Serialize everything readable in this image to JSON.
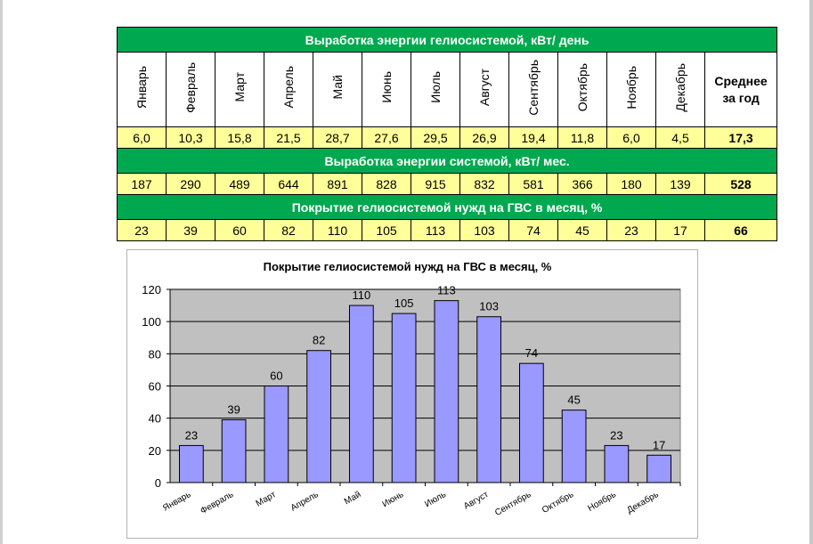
{
  "table": {
    "band1": "Выработка энергии гелиосистемой, кВт/ день",
    "band2": "Выработка энергии системой, кВт/ мес.",
    "band3": "Покрытие гелиосистемой нужд на ГВС в месяц, %",
    "months": [
      "Январь",
      "Февраль",
      "Март",
      "Апрель",
      "Май",
      "Июнь",
      "Июль",
      "Август",
      "Сентябрь",
      "Октябрь",
      "Ноябрь",
      "Декабрь"
    ],
    "avg_label_line1": "Среднее",
    "avg_label_line2": "за год",
    "daily": [
      "6,0",
      "10,3",
      "15,8",
      "21,5",
      "28,7",
      "27,6",
      "29,5",
      "26,9",
      "19,4",
      "11,8",
      "6,0",
      "4,5"
    ],
    "daily_avg": "17,3",
    "monthly": [
      "187",
      "290",
      "489",
      "644",
      "891",
      "828",
      "915",
      "832",
      "581",
      "366",
      "180",
      "139"
    ],
    "monthly_avg": "528",
    "coverage": [
      "23",
      "39",
      "60",
      "82",
      "110",
      "105",
      "113",
      "103",
      "74",
      "45",
      "23",
      "17"
    ],
    "coverage_avg": "66"
  },
  "chart_data": {
    "type": "bar",
    "title": "Покрытие гелиосистемой нужд на ГВС в месяц, %",
    "categories": [
      "Январь",
      "Февраль",
      "Март",
      "Апрель",
      "Май",
      "Июнь",
      "Июль",
      "Август",
      "Сентябрь",
      "Октябрь",
      "Ноябрь",
      "Декабрь"
    ],
    "values": [
      23,
      39,
      60,
      82,
      110,
      105,
      113,
      103,
      74,
      45,
      23,
      17
    ],
    "ylim": [
      0,
      120
    ],
    "yticks": [
      0,
      20,
      40,
      60,
      80,
      100,
      120
    ],
    "grid": true,
    "legend": "none",
    "colors": {
      "bar": "#9999ff",
      "plot_bg": "#c0c0c0",
      "gridline": "#000000"
    }
  },
  "colors": {
    "band": "#00a84f",
    "band_text": "#ffffff",
    "value_row": "#ffff99"
  }
}
